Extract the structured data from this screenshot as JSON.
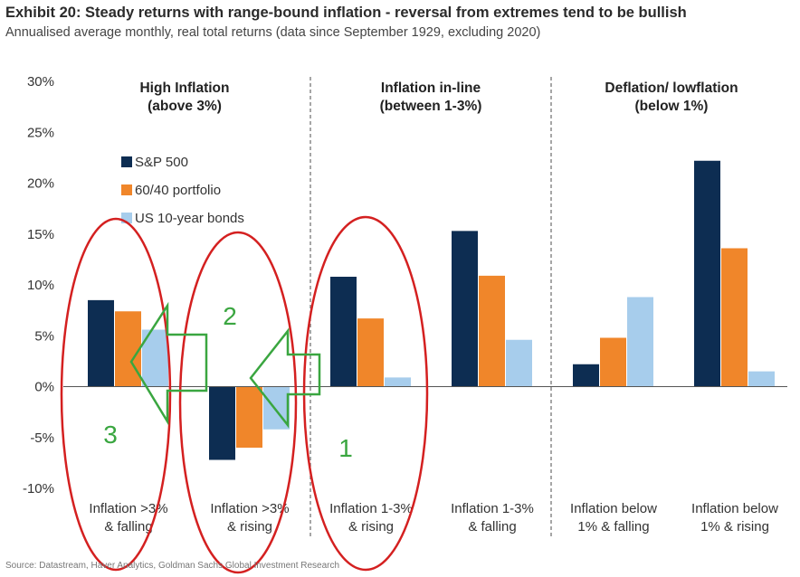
{
  "header": {
    "title": "Exhibit 20: Steady returns with range-bound inflation - reversal from extremes tend to be bullish",
    "subtitle": "Annualised average monthly, real total returns (data since September 1929, excluding 2020)"
  },
  "footer": {
    "source": "Source: Datastream, Haver Analytics, Goldman Sachs Global Investment Research"
  },
  "chart_data": {
    "type": "bar",
    "ylim": [
      -10,
      30
    ],
    "yticks": [
      "-10%",
      "-5%",
      "0%",
      "5%",
      "10%",
      "15%",
      "20%",
      "25%",
      "30%"
    ],
    "grid": false,
    "legend_position": "left",
    "categories": [
      [
        "Inflation >3%",
        "& falling"
      ],
      [
        "Inflation >3%",
        "& rising"
      ],
      [
        "Inflation 1-3%",
        "& rising"
      ],
      [
        "Inflation 1-3%",
        "& falling"
      ],
      [
        "Inflation below",
        "1% & falling"
      ],
      [
        "Inflation below",
        "1% & rising"
      ]
    ],
    "groups": [
      {
        "lines": [
          "High Inflation",
          "(above 3%)"
        ]
      },
      {
        "lines": [
          "Inflation in-line",
          "(between 1-3%)"
        ]
      },
      {
        "lines": [
          "Deflation/ lowflation",
          "(below 1%)"
        ]
      }
    ],
    "series": [
      {
        "name": "S&P 500",
        "color": "#0d2d52",
        "values": [
          8.5,
          -7.2,
          10.8,
          15.3,
          2.2,
          22.2
        ]
      },
      {
        "name": "60/40 portfolio",
        "color": "#f0862a",
        "values": [
          7.4,
          -6.0,
          6.7,
          10.9,
          4.8,
          13.6
        ]
      },
      {
        "name": "US 10-year bonds",
        "color": "#a7cdec",
        "values": [
          5.6,
          -4.2,
          0.9,
          4.6,
          8.8,
          1.5
        ]
      }
    ],
    "annotations": [
      {
        "text": "1",
        "color": "#3aa640"
      },
      {
        "text": "2",
        "color": "#3aa640"
      },
      {
        "text": "3",
        "color": "#3aa640"
      }
    ],
    "annotation_colors": {
      "ellipse": "#d42020",
      "arrow": "#3aa640"
    }
  }
}
